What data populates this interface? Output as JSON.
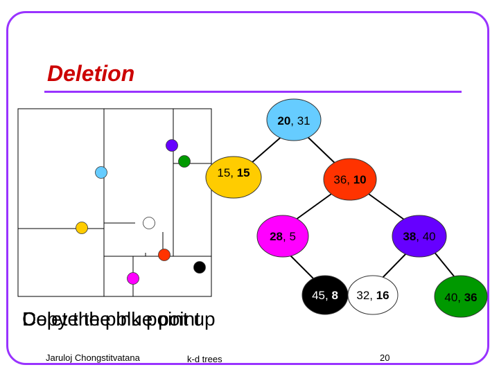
{
  "slide": {
    "title": "Deletion",
    "captions": [
      "Delete the blue point",
      "Copy the pink point up"
    ],
    "footer_author": "Jaruloj Chongstitvatana",
    "footer_topic": "k-d trees",
    "page_number": "20"
  },
  "colors": {
    "frame": "#9933ff",
    "title": "#cc0000",
    "light_blue": "#66ccff",
    "yellow": "#ffcc00",
    "red": "#ff3300",
    "pink": "#ff00ff",
    "purple": "#6600ff",
    "black": "#000000",
    "white": "#ffffff",
    "green": "#009900"
  },
  "tree": {
    "nodes": [
      {
        "id": "n20_31",
        "a": "20",
        "b": ", 31",
        "bold": "a",
        "fill": "#66ccff"
      },
      {
        "id": "n15_15",
        "a": "15, ",
        "b": "15",
        "bold": "b",
        "fill": "#ffcc00"
      },
      {
        "id": "n36_10",
        "a": "36, ",
        "b": "10",
        "bold": "b",
        "fill": "#ff3300"
      },
      {
        "id": "n28_5",
        "a": "28",
        "b": ", 5",
        "bold": "a",
        "fill": "#ff00ff"
      },
      {
        "id": "n38_40",
        "a": "38",
        "b": ", 40",
        "bold": "a",
        "fill": "#6600ff"
      },
      {
        "id": "n45_8",
        "a": "45, ",
        "b": "8",
        "bold": "b",
        "fill": "#000000"
      },
      {
        "id": "n32_16",
        "a": "32, ",
        "b": "16",
        "bold": "b",
        "fill": "#ffffff"
      },
      {
        "id": "n40_36",
        "a": "40, ",
        "b": "36",
        "bold": "b",
        "fill": "#009900"
      }
    ]
  }
}
